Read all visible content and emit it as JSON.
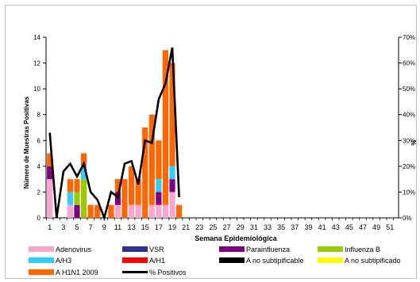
{
  "chart_data": {
    "type": "bar",
    "stacked": true,
    "xlabel": "Semana Epidemiológica",
    "ylabel": "Número de Muestras Positivas",
    "y2label": "%",
    "ylim": [
      0,
      14
    ],
    "yticks": [
      0,
      2,
      4,
      6,
      8,
      10,
      12,
      14
    ],
    "y2lim": [
      0,
      70
    ],
    "y2ticks": [
      "0%",
      "10%",
      "20%",
      "30%",
      "40%",
      "50%",
      "60%",
      "70%"
    ],
    "x_ticks": [
      1,
      3,
      5,
      7,
      9,
      11,
      13,
      15,
      17,
      19,
      21,
      23,
      25,
      27,
      29,
      31,
      33,
      35,
      37,
      39,
      41,
      43,
      45,
      47,
      49,
      51
    ],
    "xlim": [
      1,
      52
    ],
    "colors": {
      "Adenovirus": "#f7a6cf",
      "VSR": "#2e3192",
      "Parainfluenza": "#800080",
      "Influenza  B": "#99cc00",
      "A/H3": "#33ccff",
      "A/H1": "#ff0000",
      "A no subtipificable": "#000000",
      "A no subtipificado": "#ffff00",
      "A H1N1 2009": "#ff6600",
      "% Positivos": "#000000"
    },
    "categories": [
      1,
      2,
      3,
      4,
      5,
      6,
      7,
      8,
      9,
      10,
      11,
      12,
      13,
      14,
      15,
      16,
      17,
      18,
      19,
      20
    ],
    "series": [
      {
        "name": "Adenovirus",
        "values": [
          3,
          0,
          0,
          1,
          0,
          0,
          0,
          0,
          0,
          0,
          1,
          0,
          1,
          1,
          0,
          1,
          1,
          1,
          2,
          0
        ]
      },
      {
        "name": "VSR",
        "values": [
          0,
          0,
          0,
          0,
          0,
          0,
          0,
          0,
          0,
          0,
          0,
          0,
          0,
          0,
          0,
          0,
          0,
          0,
          0,
          0
        ]
      },
      {
        "name": "Parainfluenza",
        "values": [
          1,
          0,
          0,
          0,
          1,
          0,
          0,
          0,
          0,
          0,
          1,
          0,
          0,
          0,
          0,
          0,
          1,
          0,
          1,
          0
        ]
      },
      {
        "name": "Influenza  B",
        "values": [
          0,
          0,
          0,
          0,
          1,
          3,
          0,
          0,
          0,
          0,
          0,
          0,
          0,
          0,
          0,
          0,
          0,
          0,
          0,
          0
        ]
      },
      {
        "name": "A/H3",
        "values": [
          0,
          0,
          0,
          1,
          0,
          1,
          0,
          0,
          0,
          0,
          0,
          0,
          0,
          0,
          0,
          0,
          1,
          0,
          1,
          0
        ]
      },
      {
        "name": "A/H1",
        "values": [
          0,
          0,
          0,
          0,
          0,
          0,
          0,
          0,
          0,
          0,
          0,
          0,
          0,
          0,
          0,
          0,
          0,
          0,
          0,
          0
        ]
      },
      {
        "name": "A no subtipificable",
        "values": [
          0,
          0,
          0,
          0,
          0,
          0,
          0,
          0,
          0,
          0,
          0,
          0,
          0,
          0,
          0,
          0,
          0,
          0,
          0,
          0
        ]
      },
      {
        "name": "A no subtipificado",
        "values": [
          0,
          0,
          0,
          0,
          0,
          0,
          0,
          0,
          0,
          0,
          0,
          0,
          0,
          0,
          0,
          0,
          0,
          0,
          0,
          0
        ]
      },
      {
        "name": "A H1N1 2009",
        "values": [
          1,
          0,
          0,
          1,
          1,
          1,
          1,
          1,
          0,
          1,
          1,
          3,
          3,
          2,
          7,
          7,
          3,
          12,
          8,
          1
        ]
      }
    ],
    "line": {
      "name": "% Positivos",
      "x": [
        1,
        2,
        3,
        4,
        5,
        6,
        7,
        8,
        9,
        10,
        11,
        12,
        13,
        14,
        15,
        16,
        17,
        18,
        19,
        20
      ],
      "values": [
        33,
        0,
        18,
        21,
        16,
        21,
        10,
        7,
        0,
        10,
        8,
        21,
        22,
        13,
        30,
        29,
        46,
        52,
        66,
        8
      ]
    },
    "legend": {
      "placement": "bottom",
      "entries": [
        "Adenovirus",
        "VSR",
        "Parainfluenza",
        "Influenza  B",
        "A/H3",
        "A/H1",
        "A no subtipificable",
        "A no subtipificado",
        "A H1N1 2009",
        "% Positivos"
      ]
    }
  }
}
